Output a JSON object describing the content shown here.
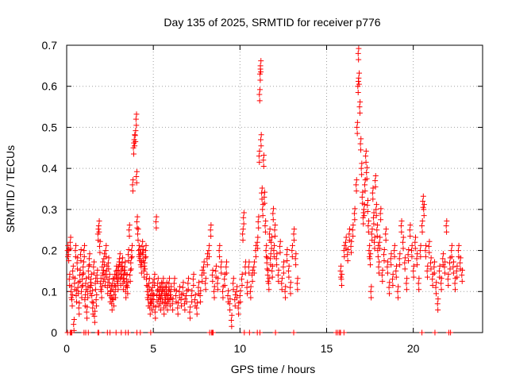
{
  "chart_data": {
    "type": "scatter",
    "title": "Day 135 of 2025, SRMTID for receiver p776",
    "xlabel": "GPS time / hours",
    "ylabel": "SRMTID / TECUs",
    "xlim": [
      0,
      24
    ],
    "ylim": [
      0,
      0.7
    ],
    "x_ticks": [
      0,
      5,
      10,
      15,
      20
    ],
    "x_tick_labels": [
      "0",
      "5",
      "10",
      "15",
      "20"
    ],
    "y_ticks": [
      0,
      0.1,
      0.2,
      0.3,
      0.4,
      0.5,
      0.6,
      0.7
    ],
    "y_tick_labels": [
      "0",
      "0.1",
      "0.2",
      "0.3",
      "0.4",
      "0.5",
      "0.6",
      "0.7"
    ],
    "grid": true,
    "marker": "+",
    "color": "#ff0000",
    "note": "Points are dense; a representative sample is listed in series.points (x in hours, y in TECU).",
    "series": [
      {
        "name": "SRMTID p776",
        "points": [
          [
            0.05,
            0.2
          ],
          [
            0.1,
            0.19
          ],
          [
            0.15,
            0.13
          ],
          [
            0.2,
            0.22
          ],
          [
            0.25,
            0.1
          ],
          [
            0.3,
            0.08
          ],
          [
            0.35,
            0.15
          ],
          [
            0.4,
            0.02
          ],
          [
            0.45,
            0.12
          ],
          [
            0.5,
            0.2
          ],
          [
            0.55,
            0.09
          ],
          [
            0.6,
            0.17
          ],
          [
            0.65,
            0.11
          ],
          [
            0.7,
            0.06
          ],
          [
            0.75,
            0.14
          ],
          [
            0.8,
            0.19
          ],
          [
            0.85,
            0.1
          ],
          [
            0.9,
            0.13
          ],
          [
            0.95,
            0.16
          ],
          [
            1.0,
            0.2
          ],
          [
            1.05,
            0.08
          ],
          [
            1.1,
            0.12
          ],
          [
            1.15,
            0.05
          ],
          [
            1.2,
            0.1
          ],
          [
            1.25,
            0.15
          ],
          [
            1.3,
            0.18
          ],
          [
            1.35,
            0.11
          ],
          [
            1.4,
            0.13
          ],
          [
            1.45,
            0.09
          ],
          [
            1.5,
            0.06
          ],
          [
            1.55,
            0.16
          ],
          [
            1.6,
            0.04
          ],
          [
            1.65,
            0.12
          ],
          [
            1.7,
            0.08
          ],
          [
            1.75,
            0.14
          ],
          [
            1.8,
            0.24
          ],
          [
            1.85,
            0.26
          ],
          [
            1.9,
            0.21
          ],
          [
            1.95,
            0.12
          ],
          [
            2.0,
            0.1
          ],
          [
            2.05,
            0.16
          ],
          [
            2.1,
            0.14
          ],
          [
            2.15,
            0.18
          ],
          [
            2.2,
            0.13
          ],
          [
            2.25,
            0.2
          ],
          [
            2.3,
            0.15
          ],
          [
            2.35,
            0.11
          ],
          [
            2.4,
            0.17
          ],
          [
            2.45,
            0.13
          ],
          [
            2.5,
            0.09
          ],
          [
            2.55,
            0.1
          ],
          [
            2.6,
            0.07
          ],
          [
            2.65,
            0.12
          ],
          [
            2.7,
            0.08
          ],
          [
            2.75,
            0.13
          ],
          [
            2.8,
            0.1
          ],
          [
            2.85,
            0.15
          ],
          [
            2.9,
            0.14
          ],
          [
            2.95,
            0.12
          ],
          [
            3.0,
            0.16
          ],
          [
            3.05,
            0.18
          ],
          [
            3.1,
            0.13
          ],
          [
            3.15,
            0.15
          ],
          [
            3.2,
            0.17
          ],
          [
            3.25,
            0.12
          ],
          [
            3.3,
            0.14
          ],
          [
            3.35,
            0.16
          ],
          [
            3.4,
            0.1
          ],
          [
            3.45,
            0.13
          ],
          [
            3.5,
            0.11
          ],
          [
            3.55,
            0.19
          ],
          [
            3.6,
            0.25
          ],
          [
            3.65,
            0.14
          ],
          [
            3.7,
            0.17
          ],
          [
            3.75,
            0.2
          ],
          [
            3.8,
            0.36
          ],
          [
            3.85,
            0.45
          ],
          [
            3.9,
            0.47
          ],
          [
            3.95,
            0.48
          ],
          [
            4.0,
            0.52
          ],
          [
            4.02,
            0.38
          ],
          [
            4.05,
            0.27
          ],
          [
            4.1,
            0.24
          ],
          [
            4.15,
            0.2
          ],
          [
            4.2,
            0.19
          ],
          [
            4.25,
            0.18
          ],
          [
            4.3,
            0.16
          ],
          [
            4.35,
            0.21
          ],
          [
            4.4,
            0.19
          ],
          [
            4.45,
            0.15
          ],
          [
            4.5,
            0.17
          ],
          [
            4.55,
            0.2
          ],
          [
            4.6,
            0.13
          ],
          [
            4.65,
            0.1
          ],
          [
            4.7,
            0.08
          ],
          [
            4.75,
            0.12
          ],
          [
            4.8,
            0.06
          ],
          [
            4.85,
            0.09
          ],
          [
            4.9,
            0.07
          ],
          [
            4.95,
            0.11
          ],
          [
            5.0,
            0.08
          ],
          [
            5.05,
            0.13
          ],
          [
            5.1,
            0.05
          ],
          [
            5.15,
            0.27
          ],
          [
            5.2,
            0.09
          ],
          [
            5.25,
            0.12
          ],
          [
            5.3,
            0.08
          ],
          [
            5.35,
            0.1
          ],
          [
            5.4,
            0.07
          ],
          [
            5.45,
            0.11
          ],
          [
            5.5,
            0.09
          ],
          [
            5.55,
            0.12
          ],
          [
            5.6,
            0.06
          ],
          [
            5.65,
            0.1
          ],
          [
            5.7,
            0.08
          ],
          [
            5.75,
            0.11
          ],
          [
            5.8,
            0.07
          ],
          [
            5.85,
            0.09
          ],
          [
            5.9,
            0.12
          ],
          [
            5.95,
            0.08
          ],
          [
            6.0,
            0.1
          ],
          [
            6.1,
            0.07
          ],
          [
            6.2,
            0.12
          ],
          [
            6.3,
            0.09
          ],
          [
            6.4,
            0.06
          ],
          [
            6.5,
            0.1
          ],
          [
            6.6,
            0.08
          ],
          [
            6.7,
            0.11
          ],
          [
            6.8,
            0.07
          ],
          [
            6.9,
            0.09
          ],
          [
            7.0,
            0.12
          ],
          [
            7.1,
            0.05
          ],
          [
            7.2,
            0.09
          ],
          [
            7.3,
            0.13
          ],
          [
            7.4,
            0.08
          ],
          [
            7.5,
            0.06
          ],
          [
            7.6,
            0.11
          ],
          [
            7.7,
            0.09
          ],
          [
            7.8,
            0.14
          ],
          [
            7.9,
            0.16
          ],
          [
            8.0,
            0.12
          ],
          [
            8.1,
            0.18
          ],
          [
            8.2,
            0.2
          ],
          [
            8.3,
            0.25
          ],
          [
            8.4,
            0.14
          ],
          [
            8.5,
            0.1
          ],
          [
            8.6,
            0.15
          ],
          [
            8.7,
            0.12
          ],
          [
            8.8,
            0.2
          ],
          [
            8.9,
            0.16
          ],
          [
            9.0,
            0.1
          ],
          [
            9.1,
            0.13
          ],
          [
            9.2,
            0.16
          ],
          [
            9.3,
            0.09
          ],
          [
            9.4,
            0.07
          ],
          [
            9.5,
            0.03
          ],
          [
            9.6,
            0.12
          ],
          [
            9.7,
            0.08
          ],
          [
            9.8,
            0.1
          ],
          [
            9.9,
            0.06
          ],
          [
            10.0,
            0.09
          ],
          [
            10.1,
            0.13
          ],
          [
            10.15,
            0.24
          ],
          [
            10.2,
            0.28
          ],
          [
            10.3,
            0.16
          ],
          [
            10.4,
            0.11
          ],
          [
            10.5,
            0.16
          ],
          [
            10.6,
            0.1
          ],
          [
            10.7,
            0.14
          ],
          [
            10.8,
            0.16
          ],
          [
            10.9,
            0.2
          ],
          [
            11.0,
            0.22
          ],
          [
            11.05,
            0.27
          ],
          [
            11.1,
            0.43
          ],
          [
            11.12,
            0.58
          ],
          [
            11.15,
            0.63
          ],
          [
            11.18,
            0.65
          ],
          [
            11.2,
            0.47
          ],
          [
            11.25,
            0.34
          ],
          [
            11.3,
            0.3
          ],
          [
            11.35,
            0.42
          ],
          [
            11.4,
            0.33
          ],
          [
            11.45,
            0.26
          ],
          [
            11.5,
            0.2
          ],
          [
            11.55,
            0.17
          ],
          [
            11.6,
            0.14
          ],
          [
            11.65,
            0.12
          ],
          [
            11.7,
            0.24
          ],
          [
            11.75,
            0.18
          ],
          [
            11.8,
            0.22
          ],
          [
            11.85,
            0.15
          ],
          [
            11.9,
            0.29
          ],
          [
            11.95,
            0.2
          ],
          [
            12.0,
            0.25
          ],
          [
            12.1,
            0.18
          ],
          [
            12.2,
            0.14
          ],
          [
            12.3,
            0.21
          ],
          [
            12.4,
            0.12
          ],
          [
            12.5,
            0.16
          ],
          [
            12.6,
            0.1
          ],
          [
            12.7,
            0.19
          ],
          [
            12.8,
            0.15
          ],
          [
            12.9,
            0.11
          ],
          [
            13.0,
            0.2
          ],
          [
            13.1,
            0.24
          ],
          [
            13.2,
            0.18
          ],
          [
            13.3,
            0.12
          ],
          [
            15.8,
            0.15
          ],
          [
            15.85,
            0.13
          ],
          [
            16.0,
            0.2
          ],
          [
            16.1,
            0.22
          ],
          [
            16.2,
            0.19
          ],
          [
            16.3,
            0.24
          ],
          [
            16.4,
            0.21
          ],
          [
            16.5,
            0.25
          ],
          [
            16.6,
            0.29
          ],
          [
            16.7,
            0.36
          ],
          [
            16.75,
            0.5
          ],
          [
            16.8,
            0.6
          ],
          [
            16.82,
            0.68
          ],
          [
            16.85,
            0.62
          ],
          [
            16.9,
            0.55
          ],
          [
            16.95,
            0.46
          ],
          [
            17.0,
            0.4
          ],
          [
            17.05,
            0.33
          ],
          [
            17.1,
            0.28
          ],
          [
            17.15,
            0.3
          ],
          [
            17.2,
            0.36
          ],
          [
            17.25,
            0.43
          ],
          [
            17.3,
            0.39
          ],
          [
            17.35,
            0.31
          ],
          [
            17.4,
            0.26
          ],
          [
            17.45,
            0.2
          ],
          [
            17.5,
            0.18
          ],
          [
            17.55,
            0.1
          ],
          [
            17.6,
            0.24
          ],
          [
            17.65,
            0.34
          ],
          [
            17.7,
            0.28
          ],
          [
            17.75,
            0.22
          ],
          [
            17.8,
            0.37
          ],
          [
            17.85,
            0.3
          ],
          [
            17.9,
            0.25
          ],
          [
            17.95,
            0.2
          ],
          [
            18.0,
            0.16
          ],
          [
            18.05,
            0.22
          ],
          [
            18.1,
            0.29
          ],
          [
            18.2,
            0.14
          ],
          [
            18.3,
            0.19
          ],
          [
            18.4,
            0.24
          ],
          [
            18.5,
            0.16
          ],
          [
            18.6,
            0.11
          ],
          [
            18.7,
            0.18
          ],
          [
            18.8,
            0.13
          ],
          [
            18.9,
            0.2
          ],
          [
            19.0,
            0.15
          ],
          [
            19.1,
            0.1
          ],
          [
            19.2,
            0.18
          ],
          [
            19.3,
            0.26
          ],
          [
            19.4,
            0.22
          ],
          [
            19.5,
            0.17
          ],
          [
            19.6,
            0.12
          ],
          [
            19.7,
            0.19
          ],
          [
            19.8,
            0.25
          ],
          [
            19.9,
            0.2
          ],
          [
            20.0,
            0.15
          ],
          [
            20.1,
            0.22
          ],
          [
            20.2,
            0.18
          ],
          [
            20.3,
            0.12
          ],
          [
            20.4,
            0.2
          ],
          [
            20.5,
            0.26
          ],
          [
            20.55,
            0.32
          ],
          [
            20.6,
            0.3
          ],
          [
            20.7,
            0.2
          ],
          [
            20.8,
            0.15
          ],
          [
            20.9,
            0.21
          ],
          [
            21.0,
            0.17
          ],
          [
            21.1,
            0.13
          ],
          [
            21.2,
            0.16
          ],
          [
            21.3,
            0.11
          ],
          [
            21.4,
            0.07
          ],
          [
            21.5,
            0.15
          ],
          [
            21.6,
            0.12
          ],
          [
            21.7,
            0.18
          ],
          [
            21.8,
            0.16
          ],
          [
            21.9,
            0.26
          ],
          [
            22.0,
            0.13
          ],
          [
            22.1,
            0.17
          ],
          [
            22.2,
            0.2
          ],
          [
            22.3,
            0.16
          ],
          [
            22.4,
            0.12
          ],
          [
            22.5,
            0.15
          ],
          [
            22.6,
            0.2
          ],
          [
            22.7,
            0.17
          ],
          [
            22.8,
            0.14
          ]
        ]
      }
    ],
    "zero_points_x": [
      0.05,
      0.2,
      0.25,
      0.3,
      1.0,
      1.1,
      1.25,
      1.8,
      1.85,
      2.35,
      2.5,
      2.85,
      3.15,
      3.4,
      3.55,
      4.05,
      4.25,
      4.85,
      8.25,
      8.35,
      8.4,
      8.45,
      10.25,
      10.55,
      11.0,
      11.15,
      12.05,
      13.1,
      15.55,
      15.65,
      15.75,
      15.8,
      16.0,
      20.5,
      21.25,
      22.05,
      22.15
    ]
  }
}
